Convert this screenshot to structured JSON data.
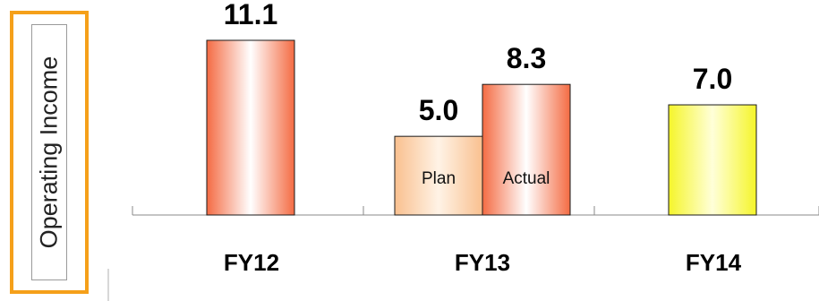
{
  "chart_data": {
    "type": "bar",
    "ylabel": "Operating Income",
    "categories": [
      "FY12",
      "FY13",
      "FY14"
    ],
    "bars": [
      {
        "category": "FY12",
        "value": 11.1,
        "value_label": "11.1",
        "inner_label": "",
        "style": "red"
      },
      {
        "category": "FY13",
        "value": 5.0,
        "value_label": "5.0",
        "inner_label": "Plan",
        "style": "peach"
      },
      {
        "category": "FY13",
        "value": 8.3,
        "value_label": "8.3",
        "inner_label": "Actual",
        "style": "red"
      },
      {
        "category": "FY14",
        "value": 7.0,
        "value_label": "7.0",
        "inner_label": "",
        "style": "yellow"
      }
    ],
    "ylim": [
      0,
      11.1
    ],
    "grid": false,
    "legend": "none"
  },
  "colors": {
    "red_edge": "#f46b43",
    "red_center": "#ffffff",
    "peach_edge": "#f9c08f",
    "peach_center": "#fff3e6",
    "yellow_edge": "#f5f52a",
    "yellow_center": "#ffffd9",
    "frame": "#f5a01a",
    "axis": "#888888"
  }
}
